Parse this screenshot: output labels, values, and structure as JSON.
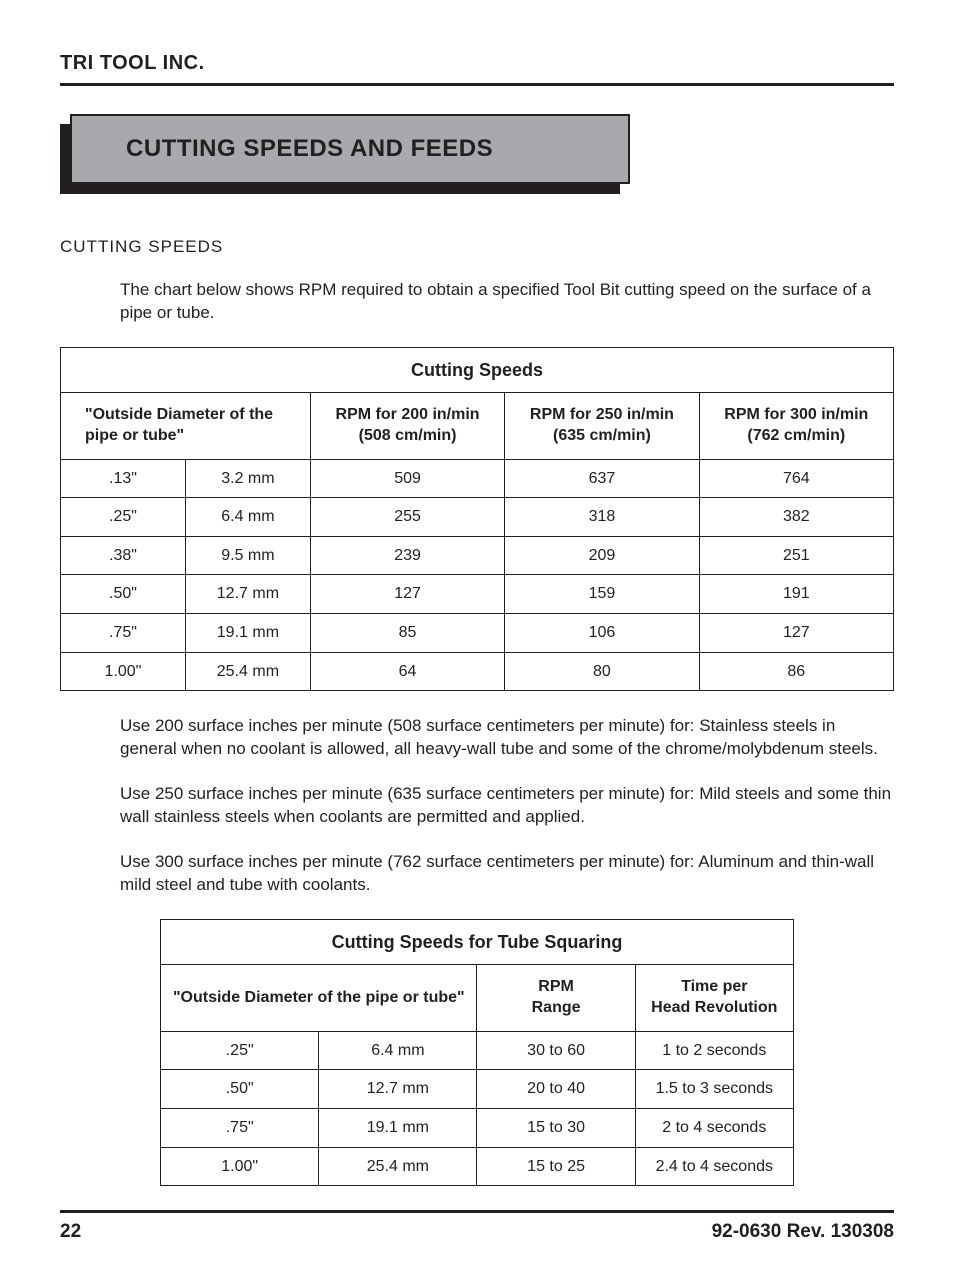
{
  "company": "TRI TOOL INC.",
  "heading": "CUTTING SPEEDS AND FEEDS",
  "section_label": "CUTTING SPEEDS",
  "intro": "The chart below shows RPM required to obtain a specified Tool Bit cutting speed on the surface of a pipe or tube.",
  "table1": {
    "title": "Cutting Speeds",
    "headers": {
      "od": "\"Outside Diameter of the pipe or tube\"",
      "c1_l1": "RPM for 200 in/min",
      "c1_l2": "(508 cm/min)",
      "c2_l1": "RPM for 250 in/min",
      "c2_l2": "(635 cm/min)",
      "c3_l1": "RPM for 300 in/min",
      "c3_l2": "(762 cm/min)"
    },
    "rows": [
      {
        "in": ".13\"",
        "mm": "3.2 mm",
        "r200": "509",
        "r250": "637",
        "r300": "764"
      },
      {
        "in": ".25\"",
        "mm": "6.4 mm",
        "r200": "255",
        "r250": "318",
        "r300": "382"
      },
      {
        "in": ".38\"",
        "mm": "9.5 mm",
        "r200": "239",
        "r250": "209",
        "r300": "251"
      },
      {
        "in": ".50\"",
        "mm": "12.7 mm",
        "r200": "127",
        "r250": "159",
        "r300": "191"
      },
      {
        "in": ".75\"",
        "mm": "19.1 mm",
        "r200": "85",
        "r250": "106",
        "r300": "127"
      },
      {
        "in": "1.00\"",
        "mm": "25.4 mm",
        "r200": "64",
        "r250": "80",
        "r300": "86"
      }
    ]
  },
  "notes": {
    "n1": "Use 200 surface inches per minute (508 surface centimeters per minute) for: Stainless steels in general when no coolant is allowed, all heavy-wall tube and some of the chrome/molybdenum steels.",
    "n2": "Use 250 surface inches per minute (635 surface centimeters per minute) for: Mild steels and some thin wall stainless steels when coolants are permitted and applied.",
    "n3": "Use 300 surface inches per minute (762 surface centimeters per minute) for: Aluminum and thin-wall mild steel and tube with coolants."
  },
  "table2": {
    "title": "Cutting Speeds for Tube Squaring",
    "headers": {
      "od": "\"Outside Diameter of the pipe or tube\"",
      "rpm_l1": "RPM",
      "rpm_l2": "Range",
      "time_l1": "Time per",
      "time_l2": "Head Revolution"
    },
    "rows": [
      {
        "in": ".25\"",
        "mm": "6.4 mm",
        "rpm": "30 to 60",
        "time": "1 to 2 seconds"
      },
      {
        "in": ".50\"",
        "mm": "12.7 mm",
        "rpm": "20 to 40",
        "time": "1.5 to 3 seconds"
      },
      {
        "in": ".75\"",
        "mm": "19.1 mm",
        "rpm": "15 to 30",
        "time": "2 to 4 seconds"
      },
      {
        "in": "1.00\"",
        "mm": "25.4 mm",
        "rpm": "15 to 25",
        "time": "2.4 to 4 seconds"
      }
    ]
  },
  "footer": {
    "page": "22",
    "doc": "92-0630   Rev. 130308"
  },
  "colors": {
    "text": "#231f20",
    "heading_bg": "#a7a9ac",
    "shadow": "#231f20",
    "border": "#231f20",
    "page_bg": "#ffffff"
  }
}
